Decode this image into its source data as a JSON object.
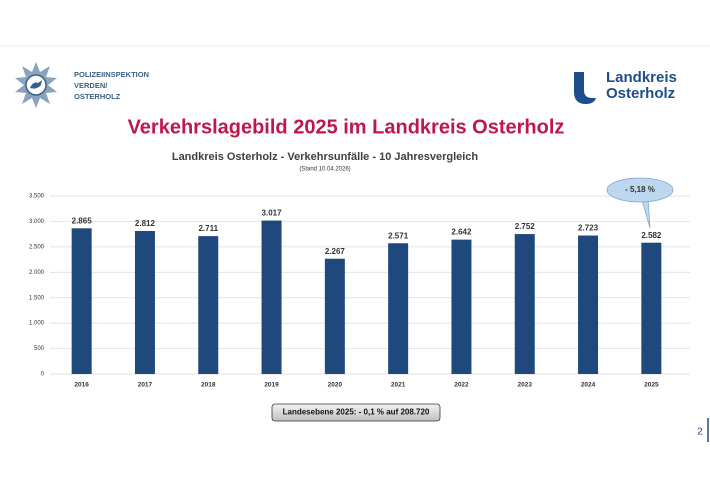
{
  "header": {
    "police_logo": [
      "POLIZEIINSPEKTION",
      "VERDEN/",
      "OSTERHOLZ"
    ],
    "district_logo": [
      "Landkreis",
      "Osterholz"
    ]
  },
  "slide_title": "Verkehrslagebild 2025 im Landkreis Osterholz",
  "chart_data": {
    "type": "bar",
    "title": "Landkreis Osterholz - Verkehrsunfälle - 10 Jahresvergleich",
    "subtitle": "(Stand 10.04.2026)",
    "categories": [
      "2016",
      "2017",
      "2018",
      "2019",
      "2020",
      "2021",
      "2022",
      "2023",
      "2024",
      "2025"
    ],
    "values": [
      2865,
      2812,
      2711,
      3017,
      2267,
      2571,
      2642,
      2752,
      2723,
      2582
    ],
    "value_labels": [
      "2.865",
      "2.812",
      "2.711",
      "3.017",
      "2.267",
      "2.571",
      "2.642",
      "2.752",
      "2.723",
      "2.582"
    ],
    "color": "#1f497d",
    "ylim": [
      0,
      3500
    ],
    "yticks": [
      0,
      500,
      {
        "value": 1000,
        "label": "1.000"
      },
      {
        "value": 1500,
        "label": "1.500"
      },
      {
        "value": 2000,
        "label": "2.000"
      },
      {
        "value": 2500,
        "label": "2.500"
      },
      {
        "value": 3000,
        "label": "3.000"
      },
      {
        "value": 3500,
        "label": "3.500"
      }
    ],
    "grid": true,
    "annotations": [
      "- 5,18 %"
    ]
  },
  "note": "Landesebene 2025: - 0,1 % auf 208.720",
  "page_number": "2"
}
